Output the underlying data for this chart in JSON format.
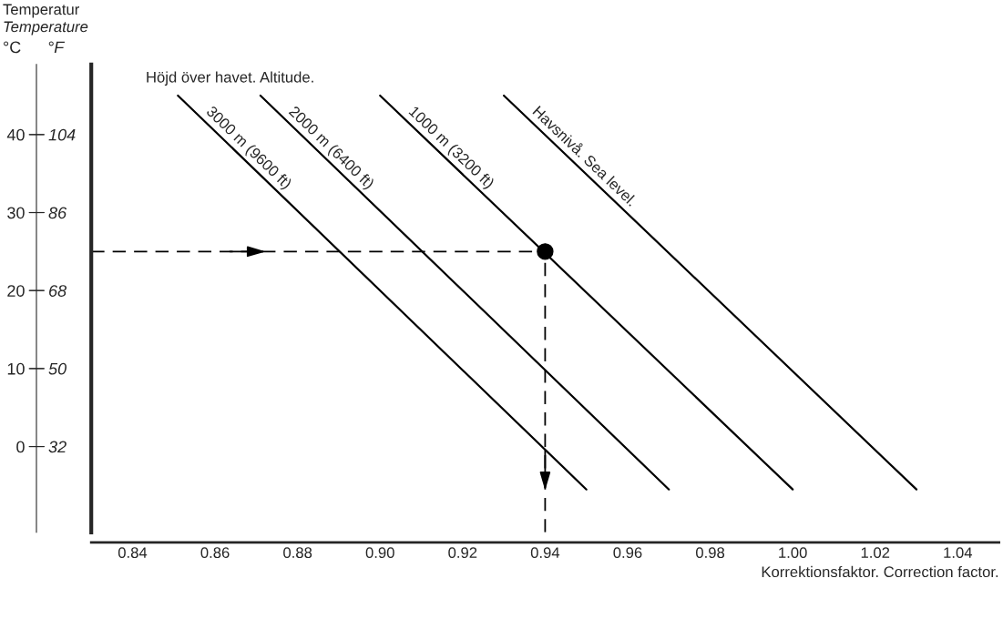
{
  "chart_data": {
    "type": "line",
    "subtitle": "Höjd över havet. Altitude.",
    "xlabel": "Korrektionsfaktor. Correction factor.",
    "ylabel": "°C",
    "y2label": "°F",
    "annotations": [
      "Temperatur",
      "Temperature"
    ],
    "series": [
      {
        "name": "3000 m (9600 ft)",
        "color": "#000000",
        "x": [
          0.851,
          0.95
        ],
        "values": [
          45,
          -5.5
        ]
      },
      {
        "name": "2000 m (6400 ft)",
        "color": "#000000",
        "x": [
          0.871,
          0.97
        ],
        "values": [
          45,
          -5.5
        ]
      },
      {
        "name": "1000 m (3200 ft)",
        "color": "#000000",
        "x": [
          0.9,
          1.0
        ],
        "values": [
          45,
          -5.5
        ]
      },
      {
        "name": "Havsnivå. Sea level.",
        "color": "#000000",
        "x": [
          0.93,
          1.03
        ],
        "values": [
          45,
          -5.5
        ]
      },
      {
        "type": "scatter",
        "color": "#000000",
        "x": [
          0.94
        ],
        "values": [
          25
        ],
        "marker": "circle"
      }
    ],
    "ref_lines": [
      {
        "axis": "y",
        "value": 25,
        "color": "#000000",
        "line_style": "dashed"
      },
      {
        "axis": "x",
        "value": 0.94,
        "color": "#000000",
        "line_style": "dashed"
      }
    ],
    "xlim": [
      0.83,
      1.05
    ],
    "xticks": [
      {
        "value": 0.84,
        "label": "0.84"
      },
      {
        "value": 0.86,
        "label": "0.86"
      },
      {
        "value": 0.88,
        "label": "0.88"
      },
      {
        "value": 0.9,
        "label": "0.90"
      },
      {
        "value": 0.92,
        "label": "0.92"
      },
      {
        "value": 0.94,
        "label": "0.94"
      },
      {
        "value": 0.96,
        "label": "0.96"
      },
      {
        "value": 0.98,
        "label": "0.98"
      },
      {
        "value": 1.0,
        "label": "1.00"
      },
      {
        "value": 1.02,
        "label": "1.02"
      },
      {
        "value": 1.04,
        "label": "1.04"
      }
    ],
    "ylim": [
      -11,
      49
    ],
    "yticks": [
      0,
      10,
      20,
      30,
      40
    ],
    "y2lim": [
      12.2,
      120.2
    ],
    "y2ticks": [
      32,
      50,
      68,
      86,
      104
    ],
    "grid": false,
    "legend": false
  }
}
